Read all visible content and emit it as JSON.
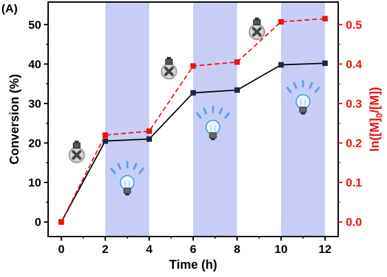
{
  "chart_data": {
    "type": "line",
    "panel_label": "(A)",
    "xlabel": "Time (h)",
    "ylabel_left": "Conversion (%)",
    "ylabel_right": {
      "base": "ln([M]",
      "sub": "0",
      "rest": "/[M])"
    },
    "xlim": [
      -0.6,
      12.6
    ],
    "ylim_left": [
      -3.7,
      55.7
    ],
    "ylim_right": [
      -0.037,
      0.557
    ],
    "x_ticks": [
      "0",
      "2",
      "4",
      "6",
      "8",
      "10",
      "12"
    ],
    "y_left_ticks": [
      "0",
      "10",
      "20",
      "30",
      "40",
      "50"
    ],
    "y_right_ticks": [
      "0.0",
      "0.1",
      "0.2",
      "0.3",
      "0.4",
      "0.5"
    ],
    "shaded_intervals": [
      [
        2,
        4
      ],
      [
        6,
        8
      ],
      [
        10,
        12
      ]
    ],
    "shade_color": "#c8cdf5",
    "series": [
      {
        "name": "",
        "axis": "left",
        "color": "#000000",
        "marker_color": "#1a2a4a",
        "line_style": "solid",
        "x": [
          0,
          2,
          4,
          6,
          8,
          10,
          12
        ],
        "y": [
          0,
          20.5,
          21.0,
          32.7,
          33.4,
          39.8,
          40.2
        ]
      },
      {
        "name": "",
        "axis": "right",
        "color": "#ee1111",
        "marker_color": "#ee1111",
        "line_style": "dashed",
        "x": [
          0,
          2,
          4,
          6,
          8,
          10,
          12
        ],
        "y": [
          0,
          0.22,
          0.23,
          0.395,
          0.405,
          0.507,
          0.515
        ]
      }
    ],
    "icons": [
      {
        "name": "bulb-off-icon",
        "state": "off",
        "x": 0.7,
        "y_left": 17.3
      },
      {
        "name": "bulb-on-icon",
        "state": "on",
        "x": 3.0,
        "y_left": 10.0
      },
      {
        "name": "bulb-off-icon",
        "state": "off",
        "x": 4.9,
        "y_left": 38.5
      },
      {
        "name": "bulb-on-icon",
        "state": "on",
        "x": 6.9,
        "y_left": 24.0
      },
      {
        "name": "bulb-off-icon",
        "state": "off",
        "x": 8.9,
        "y_left": 48.5
      },
      {
        "name": "bulb-on-icon",
        "state": "on",
        "x": 11.0,
        "y_left": 30.5
      }
    ]
  }
}
